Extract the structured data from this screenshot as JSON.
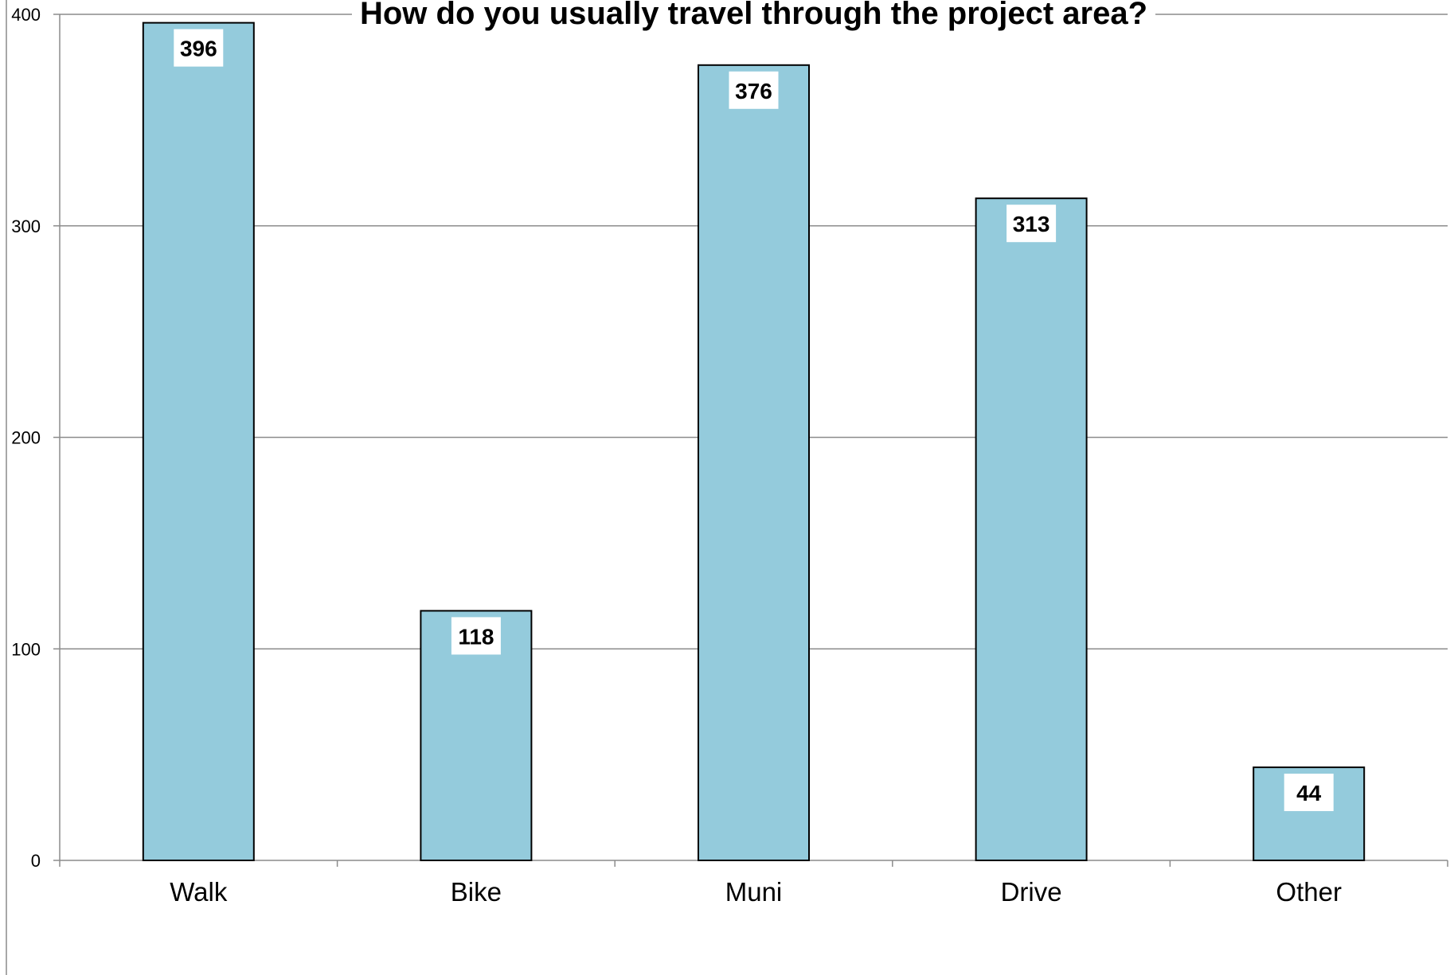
{
  "chart_data": {
    "type": "bar",
    "title": "How do you usually travel through the project area?",
    "categories": [
      "Walk",
      "Bike",
      "Muni",
      "Drive",
      "Other"
    ],
    "values": [
      396,
      118,
      376,
      313,
      44
    ],
    "ylim": [
      0,
      400
    ],
    "yticks": [
      0,
      100,
      200,
      300,
      400
    ],
    "grid": true,
    "legend": "none",
    "data_labels": true,
    "bar_color": "#94CBDC",
    "bar_edge_color": "#000000",
    "grid_color": "#8c8c8c"
  }
}
